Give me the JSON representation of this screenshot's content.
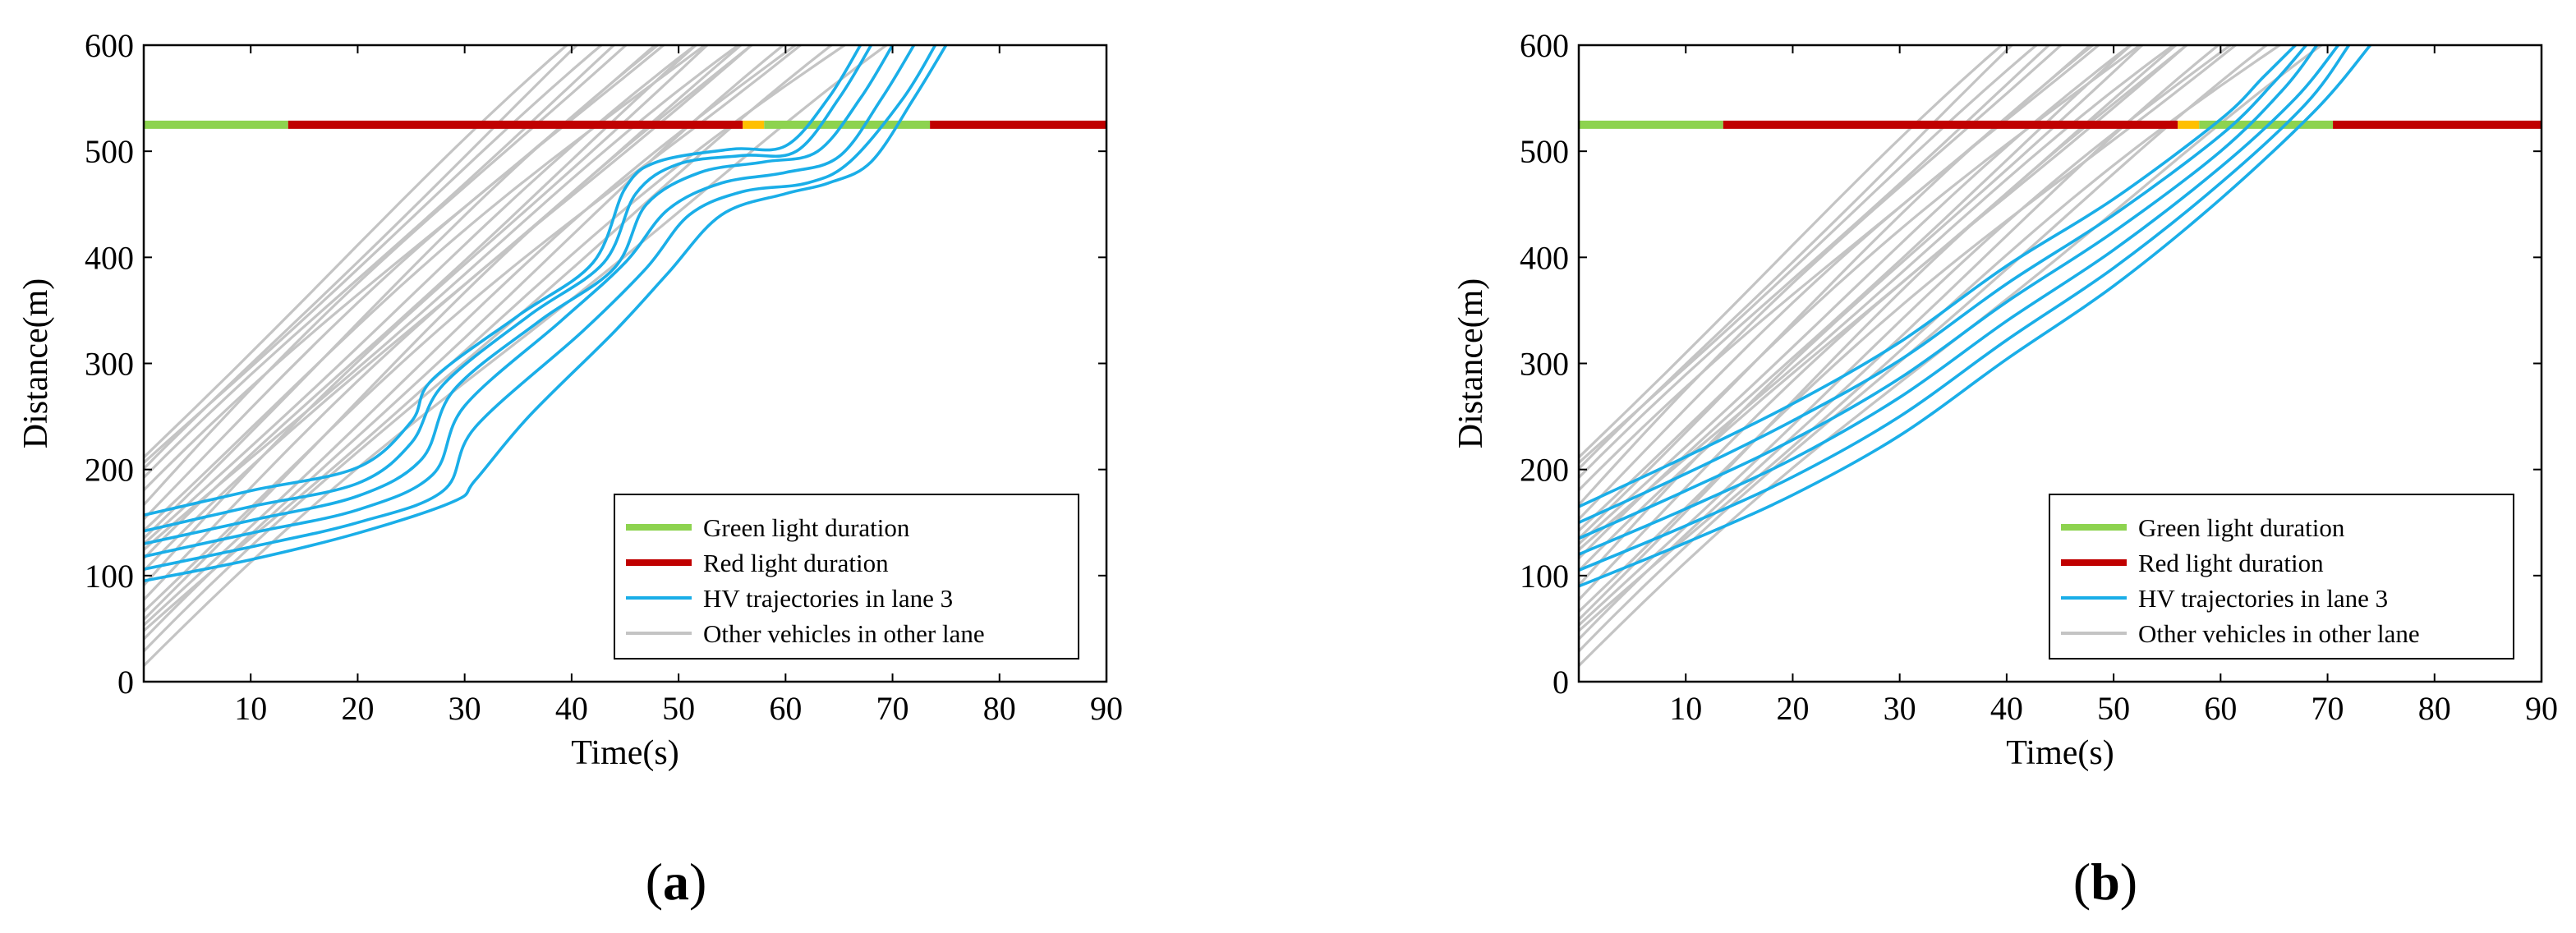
{
  "colors": {
    "green": "#8dd34f",
    "red": "#c00000",
    "amber": "#ffc000",
    "hv": "#1aaee8",
    "other": "#c4c4c4",
    "axis": "#000000"
  },
  "chart_data": [
    {
      "id": "a",
      "type": "line",
      "panel_label": "(a)",
      "xlabel": "Time(s)",
      "ylabel": "Distance(m)",
      "xlim": [
        0,
        90
      ],
      "ylim": [
        0,
        600
      ],
      "xticks": [
        10,
        20,
        30,
        40,
        50,
        60,
        70,
        80,
        90
      ],
      "yticks": [
        0,
        100,
        200,
        300,
        400,
        500,
        600
      ],
      "signal": {
        "y": 525,
        "segments": [
          {
            "color": "green",
            "start": 0,
            "end": 13.5
          },
          {
            "color": "red",
            "start": 13.5,
            "end": 56
          },
          {
            "color": "amber",
            "start": 56,
            "end": 58
          },
          {
            "color": "green",
            "start": 58,
            "end": 73.5
          },
          {
            "color": "red",
            "start": 73.5,
            "end": 90
          }
        ]
      },
      "legend": {
        "position": "bottom-right",
        "entries": [
          {
            "label": "Green light duration",
            "color": "green"
          },
          {
            "label": "Red light duration",
            "color": "red"
          },
          {
            "label": "HV trajectories in lane 3",
            "color": "hv"
          },
          {
            "label": "Other vehicles in other lane",
            "color": "other"
          }
        ]
      },
      "other_vehicles": {
        "count": 22,
        "start_distance": [
          15,
          215
        ],
        "start_time": 0,
        "speed": 10.2
      },
      "hv_trajectories": [
        {
          "name": "HV1",
          "points": [
            [
              0,
              157
            ],
            [
              10,
              180
            ],
            [
              20,
              202
            ],
            [
              25,
              245
            ],
            [
              27,
              285
            ],
            [
              35,
              345
            ],
            [
              42,
              395
            ],
            [
              45,
              465
            ],
            [
              48,
              490
            ],
            [
              55,
              502
            ],
            [
              60,
              505
            ],
            [
              64,
              550
            ],
            [
              67,
              600
            ]
          ]
        },
        {
          "name": "HV2",
          "points": [
            [
              0,
              142
            ],
            [
              10,
              165
            ],
            [
              20,
              187
            ],
            [
              25,
              225
            ],
            [
              28,
              280
            ],
            [
              36,
              345
            ],
            [
              43,
              395
            ],
            [
              46,
              460
            ],
            [
              50,
              488
            ],
            [
              56,
              496
            ],
            [
              61,
              500
            ],
            [
              65,
              550
            ],
            [
              68,
              600
            ]
          ]
        },
        {
          "name": "HV3",
          "points": [
            [
              0,
              130
            ],
            [
              10,
              152
            ],
            [
              20,
              175
            ],
            [
              26,
              210
            ],
            [
              29,
              275
            ],
            [
              37,
              340
            ],
            [
              44,
              390
            ],
            [
              47,
              450
            ],
            [
              52,
              480
            ],
            [
              58,
              490
            ],
            [
              63,
              500
            ],
            [
              67,
              550
            ],
            [
              70,
              600
            ]
          ]
        },
        {
          "name": "HV4",
          "points": [
            [
              0,
              118
            ],
            [
              10,
              140
            ],
            [
              20,
              162
            ],
            [
              27,
              195
            ],
            [
              30,
              260
            ],
            [
              39,
              340
            ],
            [
              45,
              395
            ],
            [
              49,
              445
            ],
            [
              54,
              470
            ],
            [
              60,
              480
            ],
            [
              65,
              495
            ],
            [
              69,
              550
            ],
            [
              72,
              600
            ]
          ]
        },
        {
          "name": "HV5",
          "points": [
            [
              0,
              106
            ],
            [
              10,
              127
            ],
            [
              20,
              150
            ],
            [
              28,
              180
            ],
            [
              31,
              240
            ],
            [
              41,
              330
            ],
            [
              47,
              390
            ],
            [
              51,
              440
            ],
            [
              56,
              462
            ],
            [
              62,
              470
            ],
            [
              66,
              490
            ],
            [
              71,
              550
            ],
            [
              74,
              600
            ]
          ]
        },
        {
          "name": "HV6",
          "points": [
            [
              0,
              95
            ],
            [
              10,
              115
            ],
            [
              20,
              140
            ],
            [
              29,
              170
            ],
            [
              31,
              190
            ],
            [
              36,
              250
            ],
            [
              44,
              330
            ],
            [
              49,
              385
            ],
            [
              54,
              440
            ],
            [
              60,
              460
            ],
            [
              64,
              470
            ],
            [
              68,
              490
            ],
            [
              72,
              550
            ],
            [
              75,
              600
            ]
          ]
        }
      ]
    },
    {
      "id": "b",
      "type": "line",
      "panel_label": "(b)",
      "xlabel": "Time(s)",
      "ylabel": "Distance(m)",
      "xlim": [
        0,
        90
      ],
      "ylim": [
        0,
        600
      ],
      "xticks": [
        10,
        20,
        30,
        40,
        50,
        60,
        70,
        80,
        90
      ],
      "yticks": [
        0,
        100,
        200,
        300,
        400,
        500,
        600
      ],
      "signal": {
        "y": 525,
        "segments": [
          {
            "color": "green",
            "start": 0,
            "end": 13.5
          },
          {
            "color": "red",
            "start": 13.5,
            "end": 56
          },
          {
            "color": "amber",
            "start": 56,
            "end": 58
          },
          {
            "color": "green",
            "start": 58,
            "end": 70.5
          },
          {
            "color": "red",
            "start": 70.5,
            "end": 90
          }
        ]
      },
      "legend": {
        "position": "bottom-right",
        "entries": [
          {
            "label": "Green light duration",
            "color": "green"
          },
          {
            "label": "Red light duration",
            "color": "red"
          },
          {
            "label": "HV trajectories in lane 3",
            "color": "hv"
          },
          {
            "label": "Other vehicles in other lane",
            "color": "other"
          }
        ]
      },
      "other_vehicles": {
        "count": 22,
        "start_distance": [
          15,
          215
        ],
        "start_time": 0,
        "speed": 10.2
      },
      "hv_trajectories": [
        {
          "name": "HV1",
          "points": [
            [
              0,
              165
            ],
            [
              10,
              212
            ],
            [
              20,
              262
            ],
            [
              30,
              320
            ],
            [
              40,
              392
            ],
            [
              50,
              455
            ],
            [
              60,
              530
            ],
            [
              64,
              570
            ],
            [
              67,
              600
            ]
          ]
        },
        {
          "name": "HV2",
          "points": [
            [
              0,
              150
            ],
            [
              10,
              196
            ],
            [
              20,
              246
            ],
            [
              30,
              303
            ],
            [
              40,
              375
            ],
            [
              50,
              440
            ],
            [
              60,
              515
            ],
            [
              65,
              565
            ],
            [
              68,
              600
            ]
          ]
        },
        {
          "name": "HV3",
          "points": [
            [
              0,
              135
            ],
            [
              10,
              180
            ],
            [
              20,
              228
            ],
            [
              30,
              286
            ],
            [
              40,
              358
            ],
            [
              50,
              424
            ],
            [
              60,
              500
            ],
            [
              66,
              560
            ],
            [
              69,
              600
            ]
          ]
        },
        {
          "name": "HV4",
          "points": [
            [
              0,
              120
            ],
            [
              10,
              163
            ],
            [
              20,
              210
            ],
            [
              30,
              268
            ],
            [
              40,
              340
            ],
            [
              50,
              407
            ],
            [
              60,
              485
            ],
            [
              67,
              550
            ],
            [
              71,
              600
            ]
          ]
        },
        {
          "name": "HV5",
          "points": [
            [
              0,
              105
            ],
            [
              10,
              147
            ],
            [
              20,
              193
            ],
            [
              30,
              250
            ],
            [
              40,
              322
            ],
            [
              50,
              390
            ],
            [
              60,
              470
            ],
            [
              68,
              545
            ],
            [
              72,
              600
            ]
          ]
        },
        {
          "name": "HV6",
          "points": [
            [
              0,
              90
            ],
            [
              10,
              131
            ],
            [
              20,
              176
            ],
            [
              30,
              232
            ],
            [
              40,
              304
            ],
            [
              50,
              373
            ],
            [
              60,
              455
            ],
            [
              69,
              540
            ],
            [
              74,
              600
            ]
          ]
        }
      ]
    }
  ]
}
